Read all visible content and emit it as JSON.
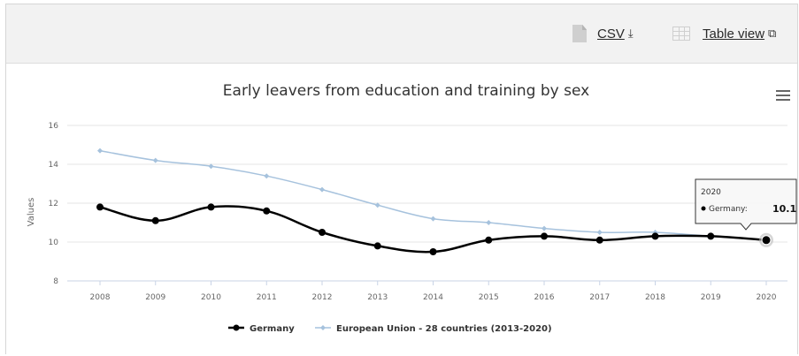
{
  "toolbar": {
    "csv_label": "CSV",
    "csv_icon": "download-icon",
    "table_label": "Table view",
    "table_icon": "external-link-icon"
  },
  "chart_data": {
    "type": "line",
    "title": "Early leavers from education and training by sex",
    "xlabel": "",
    "ylabel": "Values",
    "x": [
      "2008",
      "2009",
      "2010",
      "2011",
      "2012",
      "2013",
      "2014",
      "2015",
      "2016",
      "2017",
      "2018",
      "2019",
      "2020"
    ],
    "ylim": [
      8,
      16
    ],
    "yticks": [
      "8",
      "10",
      "12",
      "14",
      "16"
    ],
    "grid": true,
    "legend_position": "bottom",
    "series": [
      {
        "name": "Germany",
        "color": "#000000",
        "values": [
          11.8,
          11.1,
          11.8,
          11.6,
          10.5,
          9.8,
          9.5,
          10.1,
          10.3,
          10.1,
          10.3,
          10.3,
          10.1
        ]
      },
      {
        "name": "European Union - 28 countries (2013-2020)",
        "color": "#a6c2dd",
        "values": [
          14.7,
          14.2,
          13.9,
          13.4,
          12.7,
          11.9,
          11.2,
          11.0,
          10.7,
          10.5,
          10.5,
          10.3,
          10.1
        ]
      }
    ],
    "tooltip": {
      "year": "2020",
      "series": "Germany",
      "value": "10.1"
    }
  }
}
